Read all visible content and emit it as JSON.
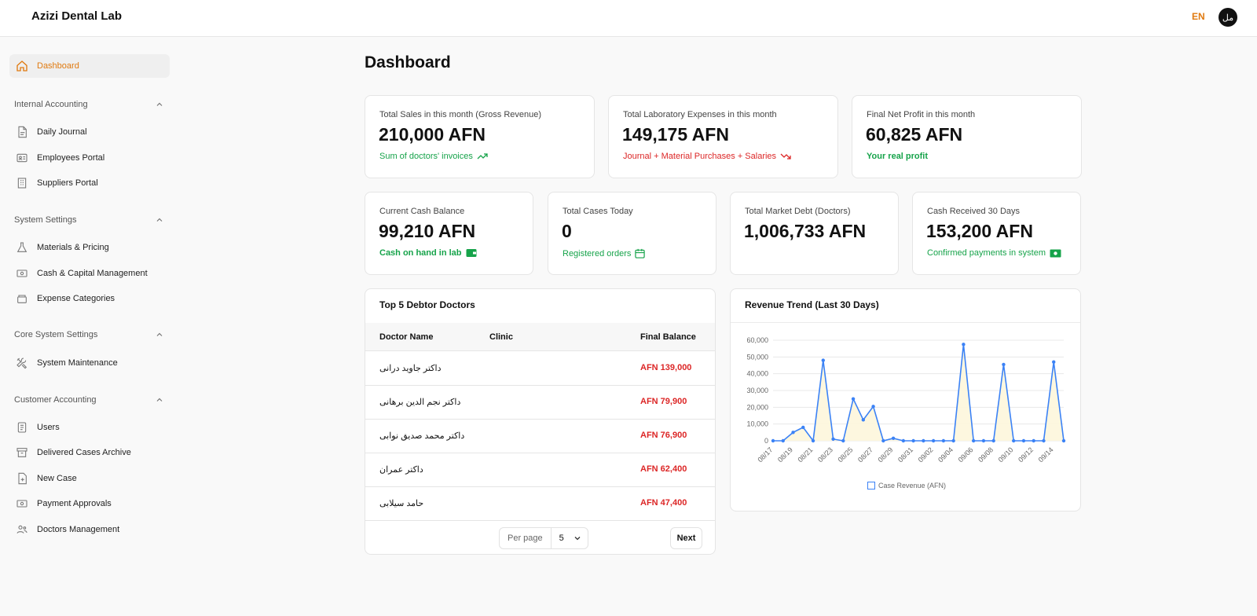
{
  "header": {
    "brand": "Azizi Dental Lab",
    "lang": "EN",
    "avatar": "مل"
  },
  "sidebar": {
    "dashboard": "Dashboard",
    "sections": [
      {
        "title": "Internal Accounting",
        "items": [
          "Daily Journal",
          "Employees Portal",
          "Suppliers Portal"
        ]
      },
      {
        "title": "System Settings",
        "items": [
          "Materials & Pricing",
          "Cash & Capital Management",
          "Expense Categories"
        ]
      },
      {
        "title": "Core System Settings",
        "items": [
          "System Maintenance"
        ]
      },
      {
        "title": "Customer Accounting",
        "items": [
          "Users",
          "Delivered Cases Archive",
          "New Case",
          "Payment Approvals",
          "Doctors Management"
        ]
      }
    ]
  },
  "main": {
    "title": "Dashboard",
    "top_stats": [
      {
        "label": "Total Sales in this month (Gross Revenue)",
        "value": "210,000 AFN",
        "note": "Sum of doctors' invoices"
      },
      {
        "label": "Total Laboratory Expenses in this month",
        "value": "149,175 AFN",
        "note": "Journal + Material Purchases + Salaries"
      },
      {
        "label": "Final Net Profit in this month",
        "value": "60,825 AFN",
        "note": "Your real profit"
      }
    ],
    "mid_stats": [
      {
        "label": "Current Cash Balance",
        "value": "99,210 AFN",
        "note": "Cash on hand in lab"
      },
      {
        "label": "Total Cases Today",
        "value": "0",
        "note": "Registered orders"
      },
      {
        "label": "Total Market Debt (Doctors)",
        "value": "1,006,733 AFN",
        "note": ""
      },
      {
        "label": "Cash Received 30 Days",
        "value": "153,200 AFN",
        "note": "Confirmed payments in system"
      }
    ],
    "debtors": {
      "title": "Top 5 Debtor Doctors",
      "columns": [
        "Doctor Name",
        "Clinic",
        "Final Balance"
      ],
      "rows": [
        {
          "name": "داکتر جاوید درانی",
          "clinic": "",
          "balance": "AFN 139,000"
        },
        {
          "name": "داکتر نجم الدین برهانی",
          "clinic": "",
          "balance": "AFN 79,900"
        },
        {
          "name": "داکتر محمد صدیق نوابی",
          "clinic": "",
          "balance": "AFN 76,900"
        },
        {
          "name": "داکتر عمران",
          "clinic": "",
          "balance": "AFN 62,400"
        },
        {
          "name": "حامد سیلابی",
          "clinic": "",
          "balance": "AFN 47,400"
        }
      ],
      "per_page_label": "Per page",
      "per_page_value": "5",
      "next_label": "Next"
    },
    "revenue": {
      "title": "Revenue Trend (Last 30 Days)"
    }
  },
  "colors": {
    "accent": "#e07a10",
    "positive": "#16a34a",
    "negative": "#dc2626",
    "line": "#3b82f6"
  },
  "chart_data": {
    "type": "line",
    "title": "Revenue Trend (Last 30 Days)",
    "x": [
      "08/17",
      "08/18",
      "08/19",
      "08/20",
      "08/21",
      "08/22",
      "08/23",
      "08/24",
      "08/25",
      "08/26",
      "08/27",
      "08/28",
      "08/29",
      "08/30",
      "08/31",
      "09/01",
      "09/02",
      "09/03",
      "09/04",
      "09/05",
      "09/06",
      "09/07",
      "09/08",
      "09/09",
      "09/10",
      "09/11",
      "09/12",
      "09/13",
      "09/14",
      "09/15"
    ],
    "x_tick_labels": [
      "08/17",
      "08/19",
      "08/21",
      "08/23",
      "08/25",
      "08/27",
      "08/29",
      "08/31",
      "09/02",
      "09/04",
      "09/06",
      "09/08",
      "09/10",
      "09/12",
      "09/14"
    ],
    "series": [
      {
        "name": "Case Revenue (AFN)",
        "values": [
          0,
          0,
          5000,
          8000,
          0,
          48000,
          1000,
          0,
          25000,
          12500,
          20500,
          0,
          1500,
          0,
          0,
          0,
          0,
          0,
          0,
          57500,
          0,
          0,
          0,
          45500,
          0,
          0,
          0,
          0,
          47000,
          0
        ]
      }
    ],
    "ylim": [
      0,
      60000
    ],
    "yticks": [
      0,
      10000,
      20000,
      30000,
      40000,
      50000,
      60000
    ],
    "ytick_labels": [
      "0",
      "10,000",
      "20,000",
      "30,000",
      "40,000",
      "50,000",
      "60,000"
    ],
    "grid": true,
    "legend": "bottom"
  }
}
